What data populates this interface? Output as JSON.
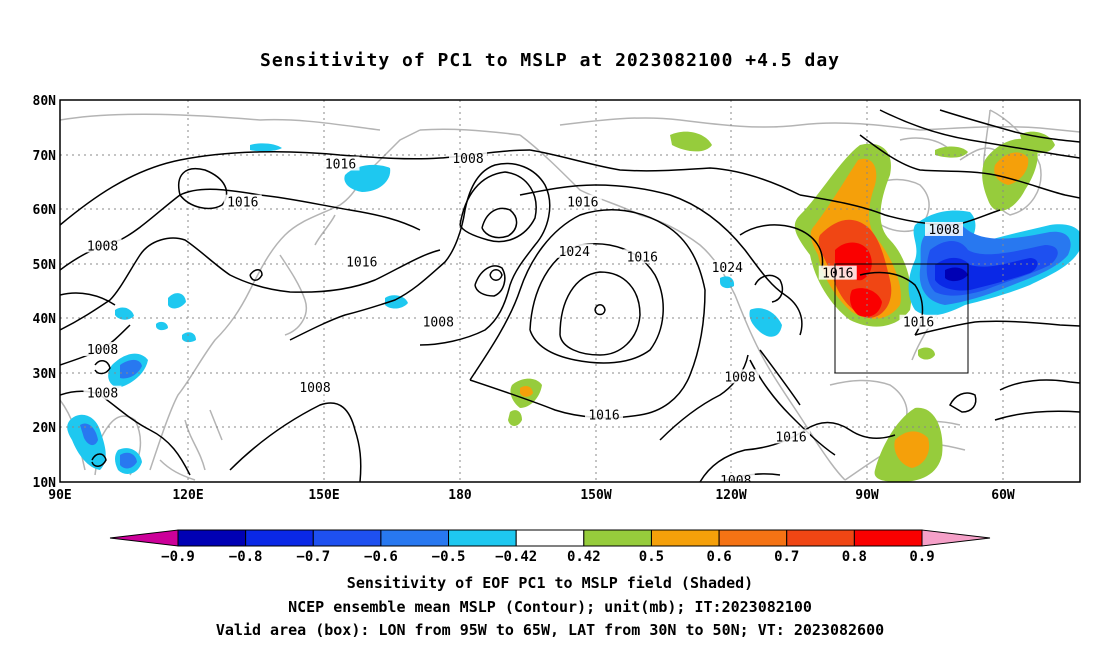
{
  "title": "Sensitivity of PC1 to MSLP at 2023082100 +4.5 day",
  "map": {
    "lat_labels": [
      "80N",
      "70N",
      "60N",
      "50N",
      "40N",
      "30N",
      "20N",
      "10N"
    ],
    "lon_labels": [
      "90E",
      "120E",
      "150E",
      "180",
      "150W",
      "120W",
      "90W",
      "60W"
    ],
    "lat_range": [
      10,
      80
    ],
    "lon_range_east_deg": [
      90,
      330
    ],
    "valid_box": {
      "lon": [
        "95W",
        "65W"
      ],
      "lat": [
        "30N",
        "50N"
      ]
    },
    "contour_labels": [
      {
        "text": "1016",
        "lon": 156,
        "lat": 68
      },
      {
        "text": "1016",
        "lon": 133,
        "lat": 61
      },
      {
        "text": "1008",
        "lon": 100,
        "lat": 53
      },
      {
        "text": "1008",
        "lon": 100,
        "lat": 34
      },
      {
        "text": "1008",
        "lon": 100,
        "lat": 26
      },
      {
        "text": "1008",
        "lon": 150,
        "lat": 27
      },
      {
        "text": "1016",
        "lon": 161,
        "lat": 50
      },
      {
        "text": "1008",
        "lon": 186,
        "lat": 69
      },
      {
        "text": "1008",
        "lon": 179,
        "lat": 39
      },
      {
        "text": "1016",
        "lon": 213,
        "lat": 61
      },
      {
        "text": "1024",
        "lon": 211,
        "lat": 52
      },
      {
        "text": "1016",
        "lon": 227,
        "lat": 51
      },
      {
        "text": "1024",
        "lon": 247,
        "lat": 49
      },
      {
        "text": "1016",
        "lon": 273,
        "lat": 48
      },
      {
        "text": "1008",
        "lon": 298,
        "lat": 56
      },
      {
        "text": "1016",
        "lon": 292,
        "lat": 39
      },
      {
        "text": "1008",
        "lon": 250,
        "lat": 29
      },
      {
        "text": "1016",
        "lon": 218,
        "lat": 22
      },
      {
        "text": "1016",
        "lon": 262,
        "lat": 18
      },
      {
        "text": "1008",
        "lon": 249,
        "lat": 10
      }
    ]
  },
  "colorbar": {
    "labels": [
      "-0.9",
      "-0.8",
      "-0.7",
      "-0.6",
      "-0.5",
      "-0.42",
      "0.42",
      "0.5",
      "0.6",
      "0.7",
      "0.8",
      "0.9"
    ],
    "colors": [
      "#0000b4",
      "#0a28e6",
      "#1e50f0",
      "#2878f0",
      "#1ec8f0",
      "#ffffff",
      "#96cc3c",
      "#f5a00a",
      "#f57314",
      "#f04614",
      "#fa0000"
    ],
    "low_arrow_color": "#cc0099",
    "high_arrow_color": "#f5a0c8"
  },
  "captions": {
    "line1": "Sensitivity of EOF PC1 to MSLP field (Shaded)",
    "line2": "NCEP ensemble mean MSLP (Contour); unit(mb); IT:2023082100",
    "line3": "Valid area (box): LON from 95W to 65W, LAT from 30N to 50N; VT: 2023082600"
  }
}
